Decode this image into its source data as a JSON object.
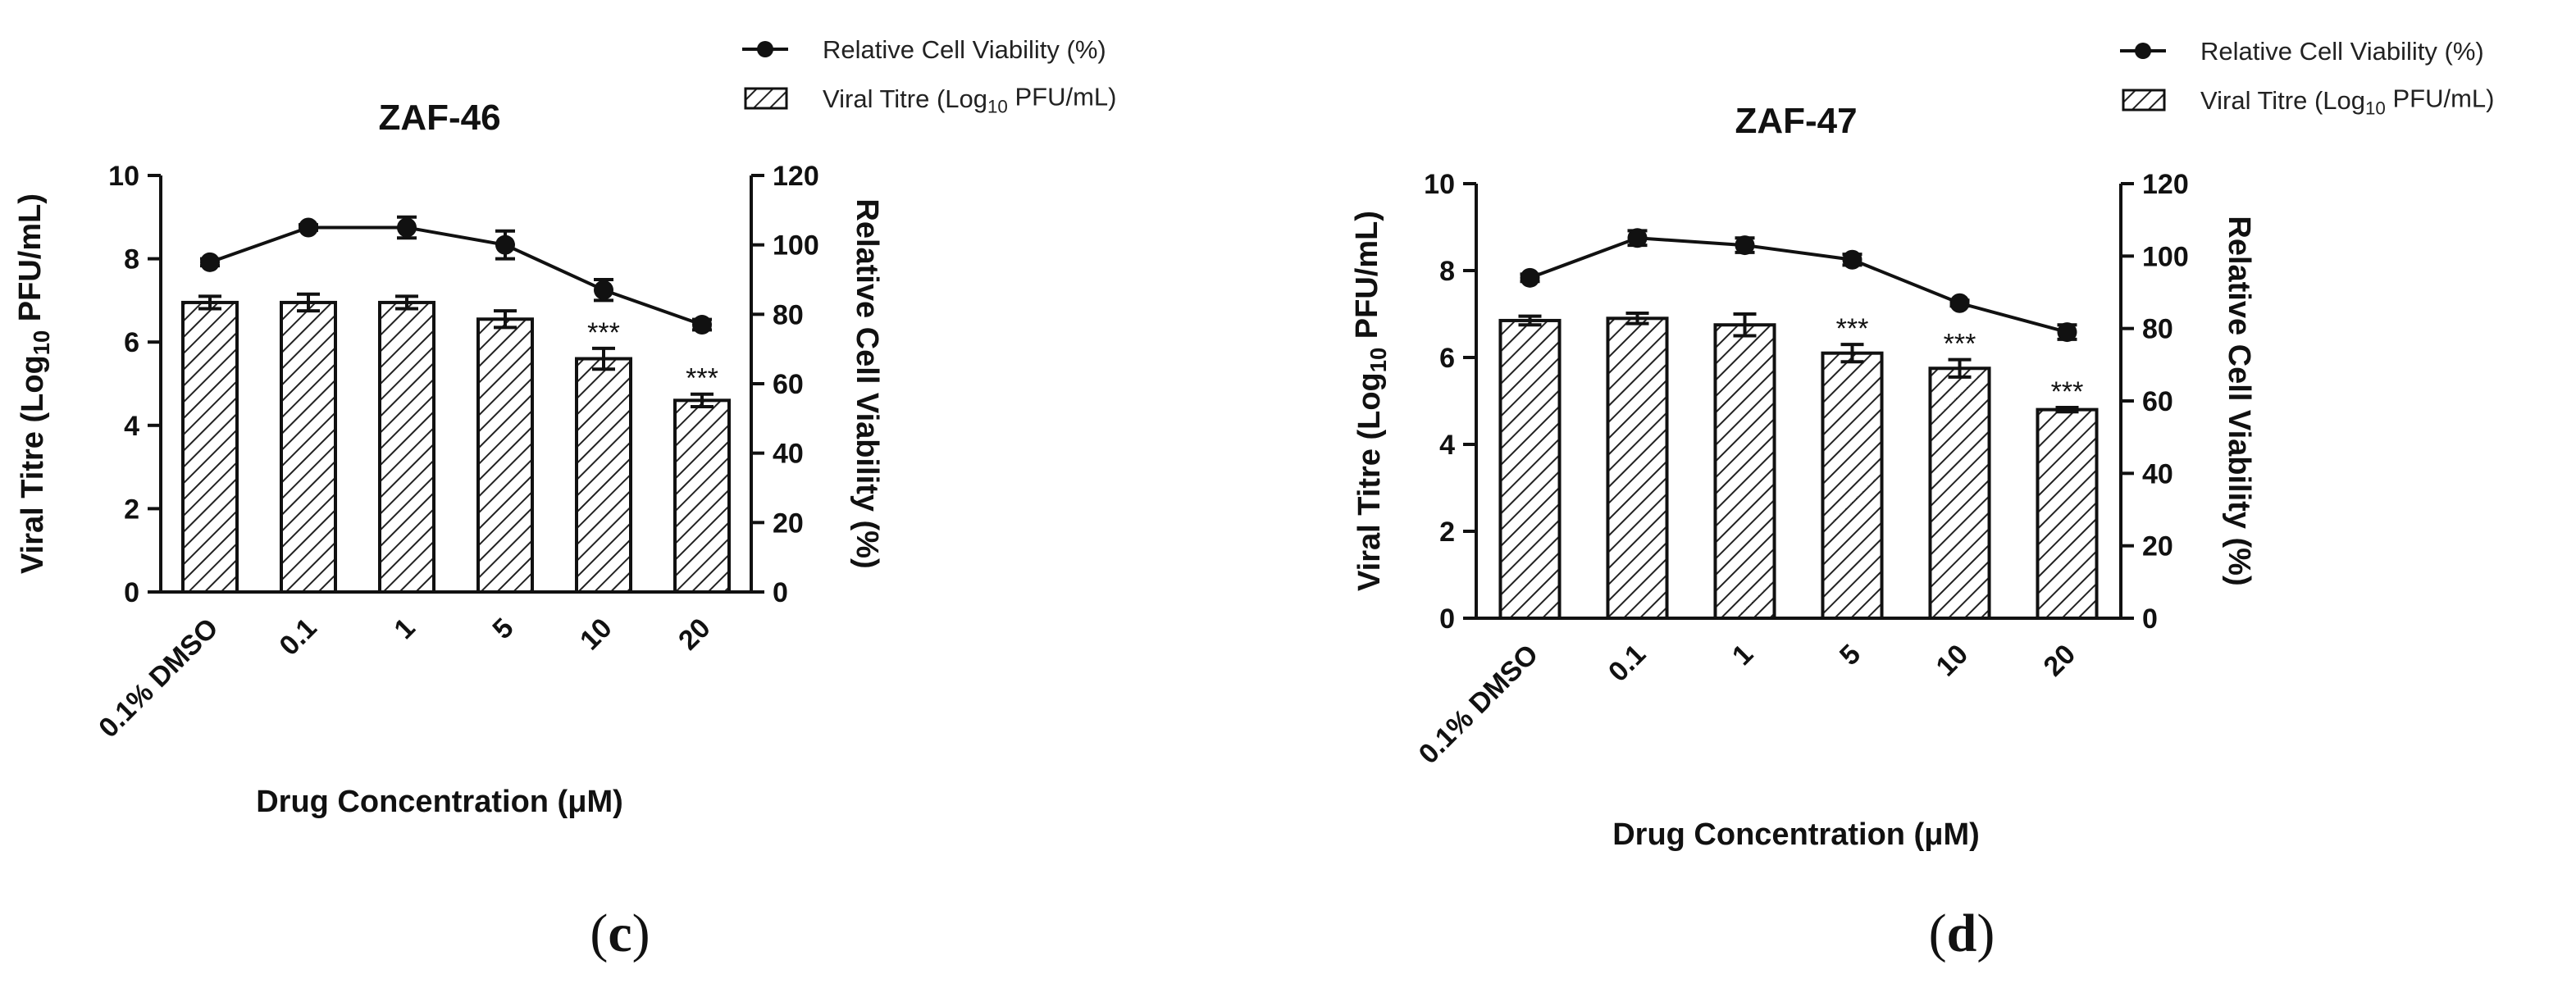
{
  "chart_data": [
    {
      "type": "bar",
      "title": "ZAF-46",
      "panel_label": "c",
      "xlabel": "Drug Concentration (μM)",
      "ylabel_left": "Viral Titre (Log10 PFU/mL)",
      "ylabel_right": "Relative Cell Viability (%)",
      "categories": [
        "0.1% DMSO",
        "0.1",
        "1",
        "5",
        "10",
        "20"
      ],
      "ylim_left": [
        0,
        10
      ],
      "yticks_left": [
        "0",
        "2",
        "4",
        "6",
        "8",
        "10"
      ],
      "ylim_right": [
        0,
        120
      ],
      "yticks_right": [
        "0",
        "20",
        "40",
        "60",
        "80",
        "100",
        "120"
      ],
      "grid": false,
      "legend_position": "top-right",
      "legend": [
        "Relative Cell Viability (%)",
        "Viral Titre (Log10 PFU/mL)"
      ],
      "series": [
        {
          "name": "Viral Titre (Log10 PFU/mL)",
          "kind": "bar",
          "axis": "left",
          "pattern": "hatched",
          "values": [
            6.95,
            6.95,
            6.95,
            6.55,
            5.6,
            4.6
          ],
          "errors": [
            0.15,
            0.2,
            0.15,
            0.2,
            0.25,
            0.15
          ],
          "annotations": [
            "",
            "",
            "",
            "",
            "***",
            "***"
          ]
        },
        {
          "name": "Relative Cell Viability (%)",
          "kind": "line",
          "axis": "right",
          "marker": "circle",
          "values": [
            95,
            105,
            105,
            100,
            87,
            77
          ],
          "errors": [
            1,
            0.8,
            3,
            4,
            3,
            1.5
          ]
        }
      ]
    },
    {
      "type": "bar",
      "title": "ZAF-47",
      "panel_label": "d",
      "xlabel": "Drug Concentration (μM)",
      "ylabel_left": "Viral Titre (Log10 PFU/mL)",
      "ylabel_right": "Relative Cell Viability (%)",
      "categories": [
        "0.1% DMSO",
        "0.1",
        "1",
        "5",
        "10",
        "20"
      ],
      "ylim_left": [
        0,
        10
      ],
      "yticks_left": [
        "0",
        "2",
        "4",
        "6",
        "8",
        "10"
      ],
      "ylim_right": [
        0,
        120
      ],
      "yticks_right": [
        "0",
        "20",
        "40",
        "60",
        "80",
        "100",
        "120"
      ],
      "grid": false,
      "legend_position": "top-right",
      "legend": [
        "Relative Cell Viability (%)",
        "Viral Titre (Log10 PFU/mL)"
      ],
      "series": [
        {
          "name": "Viral Titre (Log10 PFU/mL)",
          "kind": "bar",
          "axis": "left",
          "pattern": "hatched",
          "values": [
            6.85,
            6.9,
            6.75,
            6.1,
            5.75,
            4.8
          ],
          "errors": [
            0.1,
            0.12,
            0.25,
            0.2,
            0.2,
            0.05
          ],
          "annotations": [
            "",
            "",
            "",
            "***",
            "***",
            "***"
          ]
        },
        {
          "name": "Relative Cell Viability (%)",
          "kind": "line",
          "axis": "right",
          "marker": "circle",
          "values": [
            94,
            105,
            103,
            99,
            87,
            79
          ],
          "errors": [
            1,
            2,
            2,
            1.5,
            0.8,
            2
          ]
        }
      ]
    }
  ]
}
